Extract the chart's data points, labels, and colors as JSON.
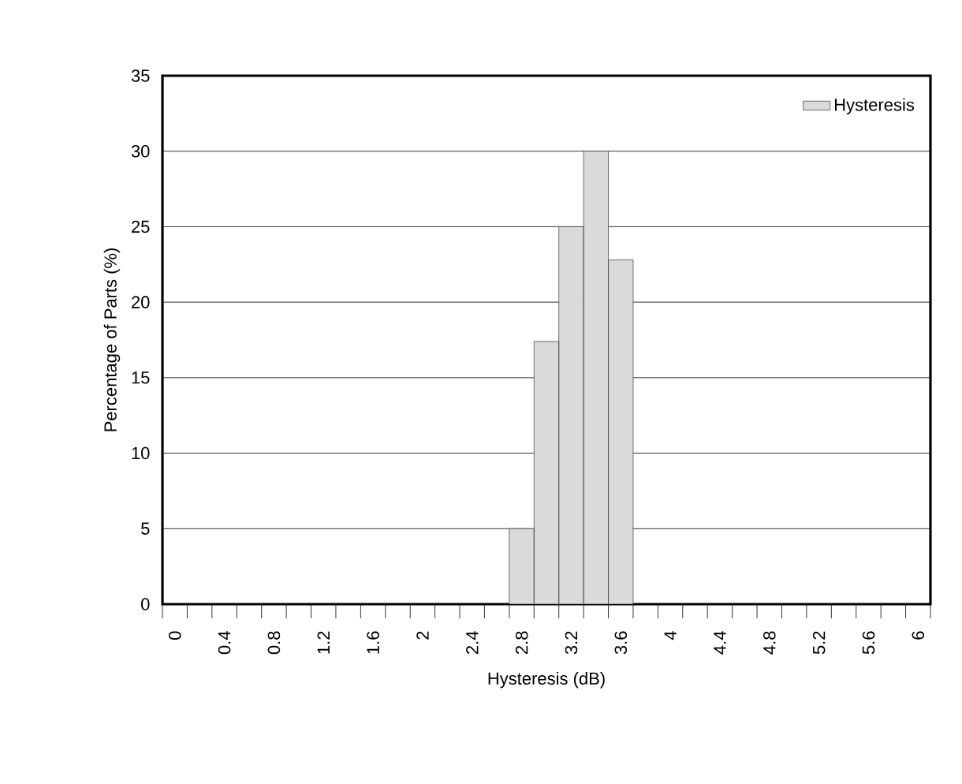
{
  "chart_data": {
    "type": "bar",
    "xlabel": "Hysteresis (dB)",
    "ylabel": "Percentage of Parts (%)",
    "categories": [
      "0",
      null,
      "0.4",
      null,
      "0.8",
      null,
      "1.2",
      null,
      "1.6",
      null,
      "2",
      null,
      "2.4",
      null,
      "2.8",
      null,
      "3.2",
      null,
      "3.6",
      null,
      "4",
      null,
      "4.4",
      null,
      "4.8",
      null,
      "5.2",
      null,
      "5.6",
      null,
      "6"
    ],
    "series": [
      {
        "name": "Hysteresis",
        "color": "#d9dadc",
        "values": [
          0,
          0,
          0,
          0,
          0,
          0,
          0,
          0,
          0,
          0,
          0,
          0,
          0,
          0,
          5,
          17.4,
          25,
          30,
          22.8,
          0,
          0,
          0,
          0,
          0,
          0,
          0,
          0,
          0,
          0,
          0,
          0
        ]
      }
    ],
    "ylim": [
      0,
      35
    ],
    "yticks": [
      0,
      5,
      10,
      15,
      20,
      25,
      30,
      35
    ],
    "grid": "y",
    "legend": "top right"
  }
}
